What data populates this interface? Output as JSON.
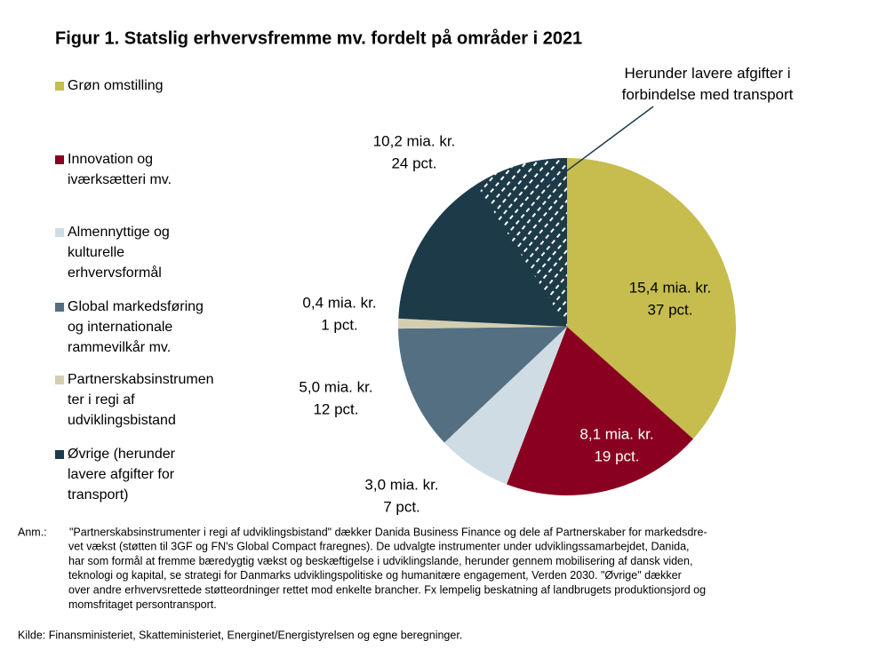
{
  "chart_data": {
    "type": "pie",
    "title": "Figur 1. Statslig erhvervsfremme mv. fordelt på områder i 2021",
    "categories": [
      "Grøn omstilling",
      "Innovation og\niværksætteri mv.",
      "Almennyttige og\nkulturelle\nerhvervsformål",
      "Global markedsføring\nog internationale\nrammevilkår mv.",
      "Partnerskabsinstrumen\nter i regi af\nudviklingsbistand",
      "Øvrige (herunder\nlavere afgifter for\ntransport)"
    ],
    "values": [
      15.4,
      8.1,
      3.0,
      5.0,
      0.4,
      10.2
    ],
    "value_labels": [
      "15,4 mia. kr.",
      "8,1 mia. kr.",
      "3,0 mia. kr.",
      "5,0 mia. kr.",
      "0,4 mia. kr.",
      "10,2 mia. kr."
    ],
    "percents": [
      37,
      19,
      7,
      12,
      1,
      24
    ],
    "percent_labels": [
      "37 pct.",
      "19 pct.",
      "7 pct.",
      "12 pct.",
      "1 pct.",
      "24 pct."
    ],
    "colors": [
      "#c6bd4e",
      "#8a0020",
      "#cfdce4",
      "#546f81",
      "#d4ceb1",
      "#1d3a48"
    ],
    "hatched": {
      "label": "Herunder lavere afgifter i\nforbindelse med transport",
      "value": 3.8
    },
    "note": [
      "Anm.:",
      "\"Partnerskabsinstrumenter i regi af udviklingsbistand\" dækker Danida Business Finance og dele af Partnerskaber for markedsdre-",
      "vet vækst (støtten til 3GF og FN's Global Compact fraregnes). De udvalgte instrumenter under udviklingssamarbejdet, Danida,",
      "har som formål at fremme bæredygtig vækst og beskæftigelse i udviklingslande, herunder gennem mobilisering af dansk viden,",
      "teknologi og kapital, se strategi for Danmarks udviklingspolitiske og humanitære engagement, Verden 2030. \"Øvrige\" dækker",
      "over andre erhvervsrettede støtteordninger rettet mod enkelte brancher. Fx lempelig beskatning af landbrugets produktionsjord og",
      "momsfritaget persontransport."
    ],
    "source": "Kilde: Finansministeriet, Skatteministeriet, Energinet/Energistyrelsen og egne beregninger."
  }
}
